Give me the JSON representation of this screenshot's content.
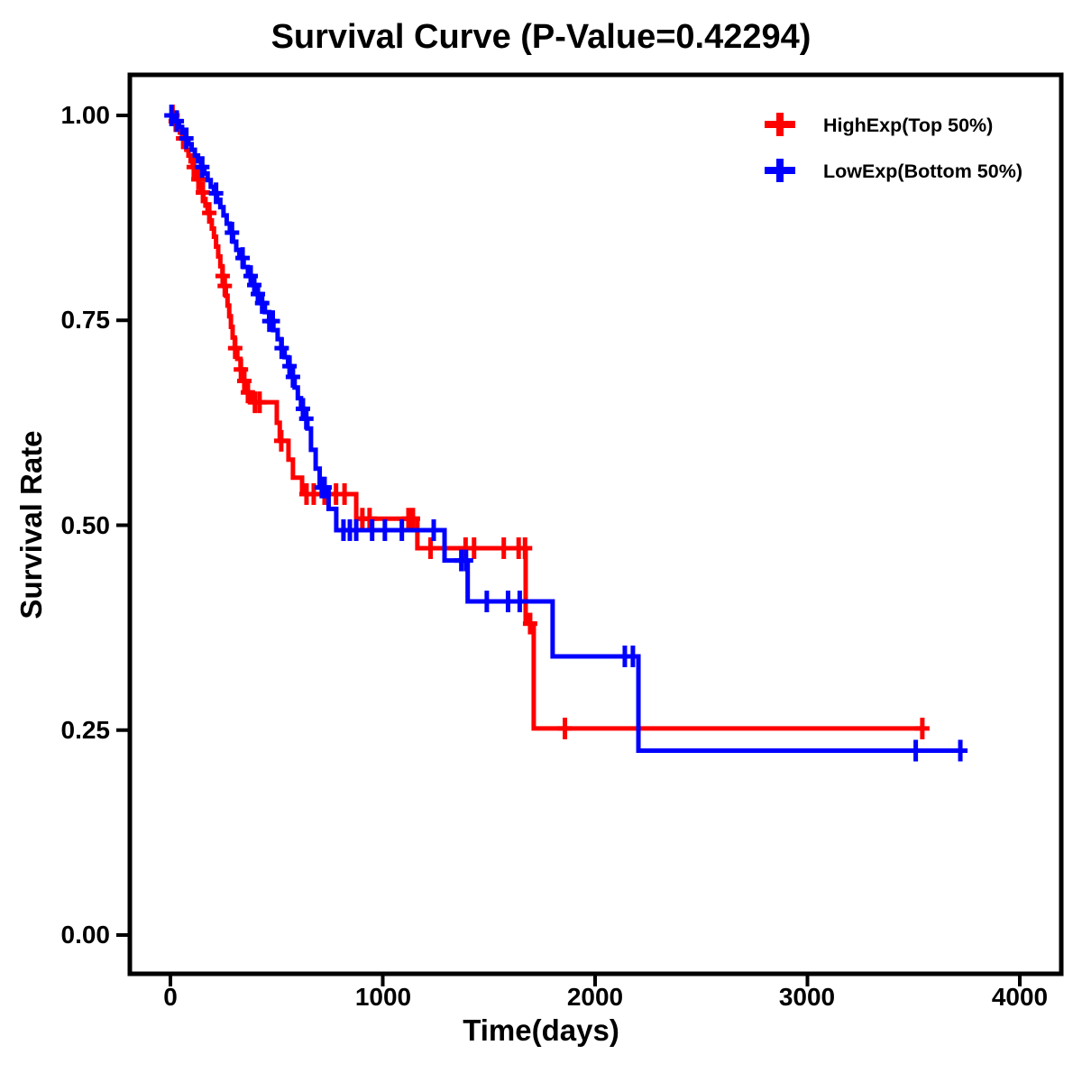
{
  "title": "Survival Curve (P-Value=0.42294)",
  "p_value_text": "0.42294",
  "axes": {
    "x": {
      "label": "Time(days)",
      "tick_labels": [
        "0",
        "1000",
        "2000",
        "3000",
        "4000"
      ],
      "tick_values": [
        0,
        1000,
        2000,
        3000,
        4000
      ]
    },
    "y": {
      "label": "Survival Rate",
      "tick_labels": [
        "1.00",
        "0.75",
        "0.50",
        "0.25",
        "0.00"
      ],
      "tick_values": [
        1.0,
        0.75,
        0.5,
        0.25,
        0.0
      ]
    }
  },
  "legend": {
    "position": "top-right",
    "entries": [
      {
        "label": "HighExp(Top 50%)",
        "color": "#FF0000",
        "marker": "plus"
      },
      {
        "label": "LowExp(Bottom 50%)",
        "color": "#0000FF",
        "marker": "plus"
      }
    ]
  },
  "chart_data": {
    "type": "line",
    "subtype": "kaplan-meier-step-curve",
    "title": "Survival Curve (P-Value=0.42294)",
    "xlabel": "Time(days)",
    "ylabel": "Survival Rate",
    "xlim": [
      0,
      4000
    ],
    "ylim": [
      0.0,
      1.0
    ],
    "x_ticks": [
      0,
      1000,
      2000,
      3000,
      4000
    ],
    "y_ticks": [
      1.0,
      0.75,
      0.5,
      0.25,
      0.0
    ],
    "grid": false,
    "colors": {
      "high": "#FF0000",
      "low": "#0000FF",
      "axis": "#000000"
    },
    "series": [
      {
        "name": "HighExp(Top 50%)",
        "color": "#FF0000",
        "end_time": 3541,
        "steps": [
          [
            0,
            1.0
          ],
          [
            15,
            0.993
          ],
          [
            30,
            0.986
          ],
          [
            45,
            0.979
          ],
          [
            55,
            0.972
          ],
          [
            65,
            0.965
          ],
          [
            75,
            0.958
          ],
          [
            85,
            0.951
          ],
          [
            95,
            0.944
          ],
          [
            105,
            0.937
          ],
          [
            115,
            0.93
          ],
          [
            125,
            0.922
          ],
          [
            135,
            0.914
          ],
          [
            145,
            0.906
          ],
          [
            155,
            0.898
          ],
          [
            165,
            0.89
          ],
          [
            175,
            0.881
          ],
          [
            185,
            0.872
          ],
          [
            195,
            0.862
          ],
          [
            205,
            0.852
          ],
          [
            215,
            0.84
          ],
          [
            225,
            0.828
          ],
          [
            235,
            0.816
          ],
          [
            245,
            0.804
          ],
          [
            253,
            0.792
          ],
          [
            261,
            0.78
          ],
          [
            269,
            0.768
          ],
          [
            277,
            0.755
          ],
          [
            285,
            0.742
          ],
          [
            293,
            0.729
          ],
          [
            303,
            0.716
          ],
          [
            315,
            0.703
          ],
          [
            330,
            0.69
          ],
          [
            345,
            0.676
          ],
          [
            362,
            0.662
          ],
          [
            380,
            0.65
          ],
          [
            501,
            0.625
          ],
          [
            515,
            0.603
          ],
          [
            556,
            0.58
          ],
          [
            577,
            0.558
          ],
          [
            620,
            0.538
          ],
          [
            875,
            0.508
          ],
          [
            1163,
            0.472
          ],
          [
            1673,
            0.38
          ],
          [
            1711,
            0.252
          ]
        ],
        "censor_times": [
          10,
          25,
          60,
          110,
          132,
          153,
          183,
          246,
          256,
          305,
          332,
          348,
          365,
          398,
          420,
          522,
          641,
          675,
          726,
          780,
          820,
          904,
          938,
          1121,
          1142,
          1225,
          1390,
          1430,
          1570,
          1640,
          1670,
          1694,
          1858,
          3541
        ]
      },
      {
        "name": "LowExp(Bottom 50%)",
        "color": "#0000FF",
        "end_time": 3740,
        "steps": [
          [
            0,
            1.0
          ],
          [
            25,
            0.993
          ],
          [
            40,
            0.986
          ],
          [
            55,
            0.979
          ],
          [
            70,
            0.972
          ],
          [
            85,
            0.965
          ],
          [
            100,
            0.958
          ],
          [
            115,
            0.951
          ],
          [
            130,
            0.944
          ],
          [
            145,
            0.937
          ],
          [
            160,
            0.929
          ],
          [
            175,
            0.921
          ],
          [
            190,
            0.913
          ],
          [
            205,
            0.905
          ],
          [
            220,
            0.897
          ],
          [
            235,
            0.888
          ],
          [
            250,
            0.878
          ],
          [
            265,
            0.868
          ],
          [
            280,
            0.857
          ],
          [
            295,
            0.846
          ],
          [
            310,
            0.836
          ],
          [
            325,
            0.826
          ],
          [
            345,
            0.815
          ],
          [
            365,
            0.804
          ],
          [
            385,
            0.793
          ],
          [
            405,
            0.782
          ],
          [
            425,
            0.771
          ],
          [
            445,
            0.76
          ],
          [
            465,
            0.749
          ],
          [
            485,
            0.738
          ],
          [
            505,
            0.727
          ],
          [
            522,
            0.716
          ],
          [
            538,
            0.705
          ],
          [
            554,
            0.694
          ],
          [
            570,
            0.681
          ],
          [
            585,
            0.668
          ],
          [
            600,
            0.655
          ],
          [
            615,
            0.642
          ],
          [
            630,
            0.63
          ],
          [
            645,
            0.618
          ],
          [
            662,
            0.592
          ],
          [
            684,
            0.569
          ],
          [
            703,
            0.546
          ],
          [
            745,
            0.52
          ],
          [
            781,
            0.494
          ],
          [
            1291,
            0.457
          ],
          [
            1400,
            0.407
          ],
          [
            1800,
            0.34
          ],
          [
            2204,
            0.225
          ]
        ],
        "censor_times": [
          5,
          30,
          75,
          150,
          215,
          290,
          340,
          378,
          395,
          412,
          432,
          466,
          482,
          524,
          561,
          577,
          624,
          640,
          713,
          726,
          815,
          845,
          875,
          950,
          1010,
          1090,
          1240,
          1370,
          1392,
          1490,
          1590,
          1645,
          2140,
          2178,
          3510,
          3720
        ]
      }
    ]
  }
}
